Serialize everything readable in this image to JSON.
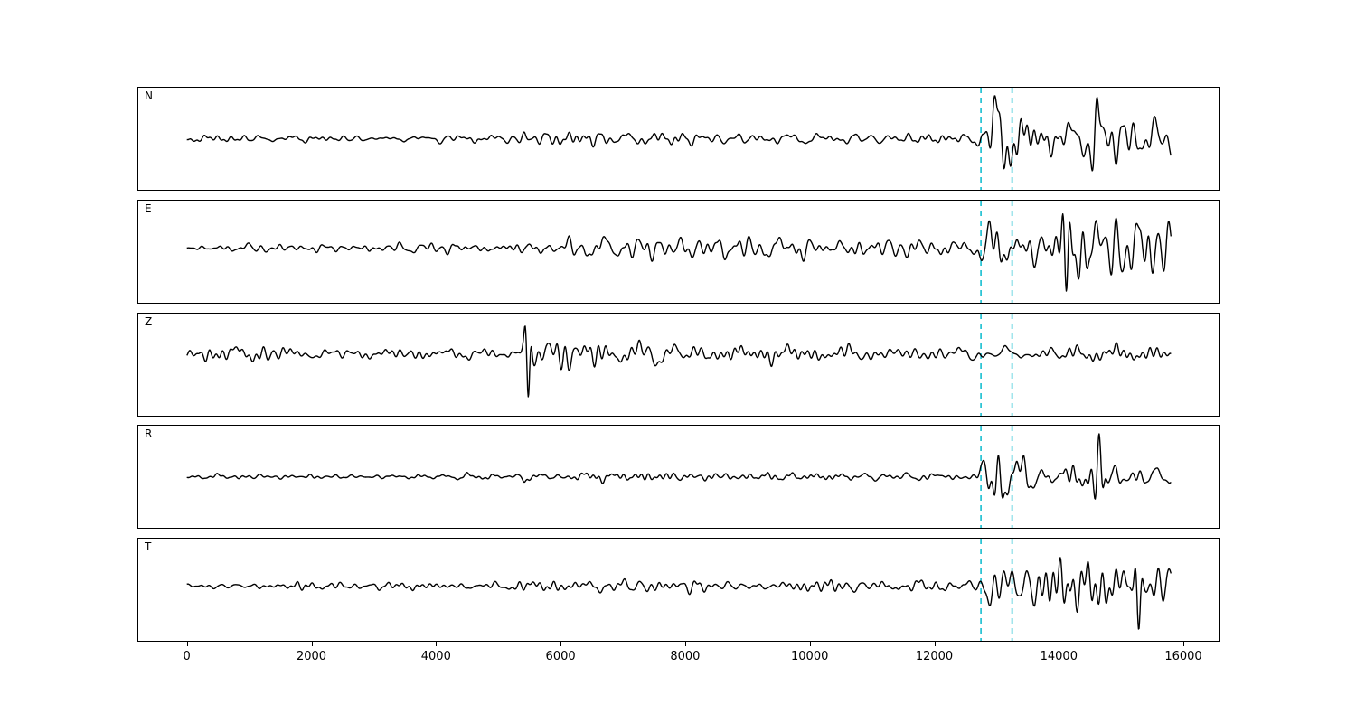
{
  "chart_data": {
    "type": "line",
    "title": "",
    "xlabel": "",
    "ylabel": "",
    "grid": false,
    "legend": null,
    "xlim": [
      -780,
      16580
    ],
    "x_ticks": [
      0,
      2000,
      4000,
      6000,
      8000,
      10000,
      12000,
      14000,
      16000
    ],
    "data_x_range": [
      0,
      15800
    ],
    "trace_color": "#000000",
    "pick_lines": {
      "positions": [
        12750,
        13250
      ],
      "color": "#17becf",
      "style": "dashed"
    },
    "panels": [
      {
        "label": "N",
        "seed": 101,
        "hf_mix": 0.5,
        "baseline_offset": 0,
        "envelope": [
          [
            0,
            0.07
          ],
          [
            3000,
            0.07
          ],
          [
            5250,
            0.08
          ],
          [
            5420,
            0.3
          ],
          [
            5550,
            0.13
          ],
          [
            6200,
            0.16
          ],
          [
            7000,
            0.14
          ],
          [
            8500,
            0.12
          ],
          [
            10500,
            0.11
          ],
          [
            12650,
            0.11
          ],
          [
            12780,
            0.45
          ],
          [
            12950,
            1.0
          ],
          [
            13350,
            0.6
          ],
          [
            13700,
            0.3
          ],
          [
            14100,
            0.45
          ],
          [
            14600,
            0.7
          ],
          [
            14900,
            0.5
          ],
          [
            15400,
            0.35
          ],
          [
            15800,
            0.3
          ]
        ],
        "spikes": [
          {
            "x": 14600,
            "a": 0.95,
            "w": 80
          }
        ]
      },
      {
        "label": "E",
        "seed": 202,
        "hf_mix": 0.55,
        "baseline_offset": -4,
        "envelope": [
          [
            0,
            0.06
          ],
          [
            2000,
            0.08
          ],
          [
            4000,
            0.1
          ],
          [
            5400,
            0.13
          ],
          [
            6000,
            0.18
          ],
          [
            6800,
            0.22
          ],
          [
            8000,
            0.24
          ],
          [
            9500,
            0.22
          ],
          [
            11000,
            0.2
          ],
          [
            12650,
            0.17
          ],
          [
            12800,
            0.5
          ],
          [
            13050,
            0.6
          ],
          [
            13400,
            0.4
          ],
          [
            13800,
            0.5
          ],
          [
            14100,
            0.75
          ],
          [
            14400,
            0.8
          ],
          [
            14800,
            0.6
          ],
          [
            15200,
            0.55
          ],
          [
            15600,
            0.7
          ],
          [
            15800,
            0.5
          ]
        ],
        "spikes": [
          {
            "x": 14120,
            "a": -1.0,
            "w": 70
          }
        ]
      },
      {
        "label": "Z",
        "seed": 303,
        "hf_mix": 0.5,
        "baseline_offset": -12,
        "envelope": [
          [
            0,
            0.2
          ],
          [
            400,
            0.32
          ],
          [
            1200,
            0.3
          ],
          [
            2500,
            0.24
          ],
          [
            4000,
            0.24
          ],
          [
            5300,
            0.26
          ],
          [
            5450,
            1.0
          ],
          [
            5650,
            0.6
          ],
          [
            6200,
            0.7
          ],
          [
            6700,
            0.75
          ],
          [
            7200,
            0.5
          ],
          [
            8200,
            0.42
          ],
          [
            9500,
            0.36
          ],
          [
            11000,
            0.33
          ],
          [
            12500,
            0.32
          ],
          [
            13100,
            0.4
          ],
          [
            13800,
            0.36
          ],
          [
            14500,
            0.38
          ],
          [
            15200,
            0.34
          ],
          [
            15800,
            0.32
          ]
        ],
        "spikes": [
          {
            "x": 5480,
            "a": -1.4,
            "w": 55
          }
        ]
      },
      {
        "label": "R",
        "seed": 404,
        "hf_mix": 0.5,
        "baseline_offset": 0,
        "envelope": [
          [
            0,
            0.07
          ],
          [
            3000,
            0.07
          ],
          [
            5250,
            0.08
          ],
          [
            5420,
            0.28
          ],
          [
            5550,
            0.12
          ],
          [
            6500,
            0.15
          ],
          [
            8000,
            0.12
          ],
          [
            10500,
            0.11
          ],
          [
            12650,
            0.11
          ],
          [
            12800,
            0.55
          ],
          [
            13000,
            1.0
          ],
          [
            13400,
            0.55
          ],
          [
            13800,
            0.3
          ],
          [
            14150,
            0.45
          ],
          [
            14650,
            0.7
          ],
          [
            15000,
            0.45
          ],
          [
            15500,
            0.3
          ],
          [
            15800,
            0.25
          ]
        ],
        "spikes": [
          {
            "x": 14650,
            "a": 0.95,
            "w": 75
          }
        ]
      },
      {
        "label": "T",
        "seed": 505,
        "hf_mix": 0.55,
        "baseline_offset": -4,
        "envelope": [
          [
            0,
            0.07
          ],
          [
            2500,
            0.09
          ],
          [
            5000,
            0.1
          ],
          [
            5420,
            0.14
          ],
          [
            6000,
            0.13
          ],
          [
            7500,
            0.16
          ],
          [
            9000,
            0.14
          ],
          [
            11000,
            0.13
          ],
          [
            12650,
            0.13
          ],
          [
            12800,
            0.5
          ],
          [
            13050,
            0.8
          ],
          [
            13400,
            0.45
          ],
          [
            13750,
            0.5
          ],
          [
            14050,
            0.95
          ],
          [
            14350,
            0.65
          ],
          [
            14800,
            0.75
          ],
          [
            15200,
            0.55
          ],
          [
            15550,
            0.85
          ],
          [
            15800,
            0.55
          ]
        ],
        "spikes": [
          {
            "x": 15280,
            "a": -0.95,
            "w": 65
          }
        ]
      }
    ]
  }
}
